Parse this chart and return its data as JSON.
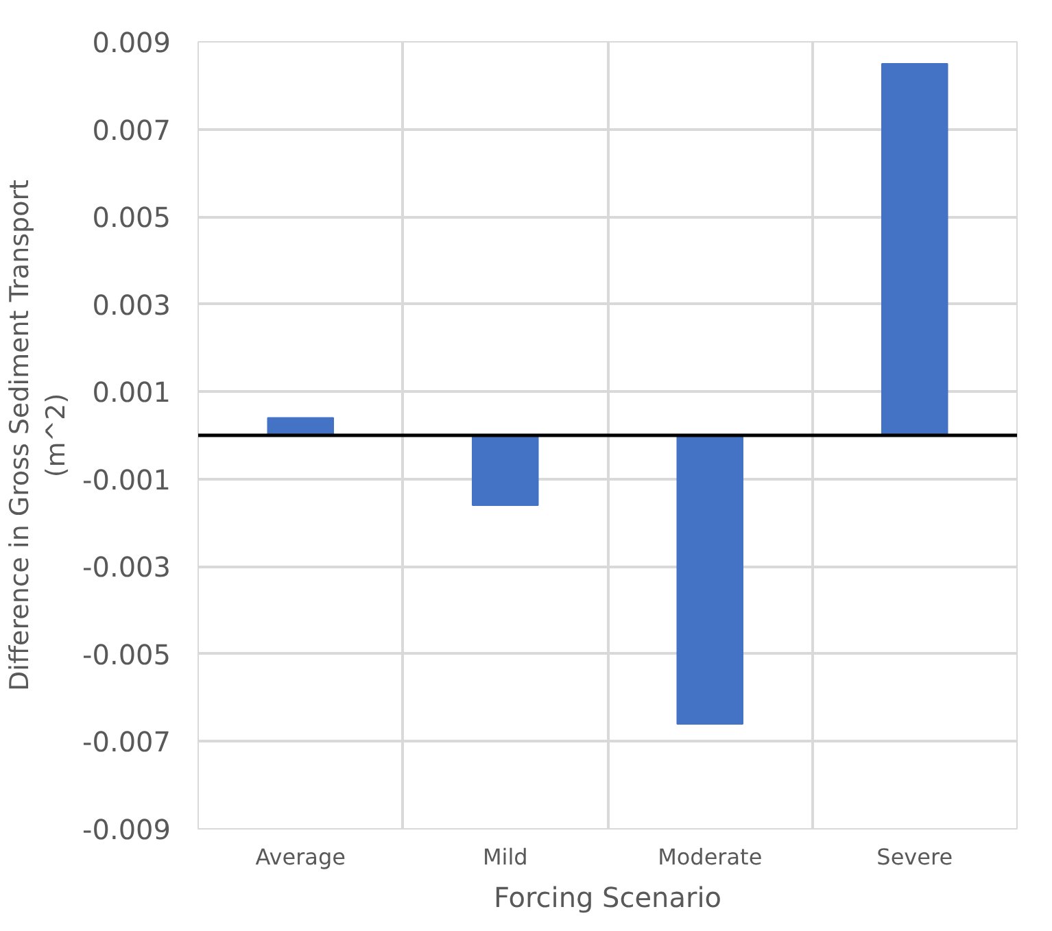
{
  "chart_data": {
    "type": "bar",
    "xlabel": "Forcing Scenario",
    "ylabel": "Difference in Gross Sediment Transport\n(m^2)",
    "categories": [
      "Average",
      "Mild",
      "Moderate",
      "Severe"
    ],
    "values": [
      0.0004,
      -0.0016,
      -0.0066,
      0.0085
    ],
    "color": "#4472c4",
    "ylim": [
      -0.009,
      0.009
    ],
    "yticks": [
      -0.009,
      -0.007,
      -0.005,
      -0.003,
      -0.001,
      0.001,
      0.003,
      0.005,
      0.007,
      0.009
    ],
    "grid": true,
    "ref_lines": [
      {
        "axis": "y",
        "value": 0,
        "color": "#000000"
      }
    ]
  }
}
